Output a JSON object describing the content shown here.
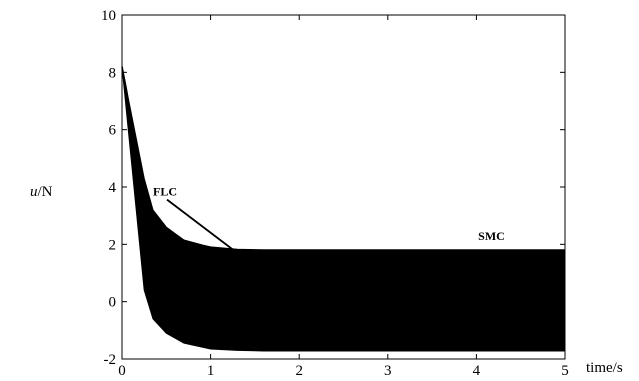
{
  "chart_data": {
    "type": "line",
    "title": "",
    "xlabel": "time/s",
    "ylabel_var": "u",
    "ylabel_unit": "/N",
    "xlim": [
      0,
      5
    ],
    "ylim": [
      -2,
      10
    ],
    "xticks": [
      "0",
      "1",
      "2",
      "3",
      "4",
      "5"
    ],
    "yticks": [
      "-2",
      "0",
      "2",
      "4",
      "6",
      "8",
      "10"
    ],
    "grid": false,
    "legend": "none",
    "series": [
      {
        "name": "SMC",
        "style": "chattering band",
        "x": [
          0,
          0.25,
          0.35,
          0.5,
          0.7,
          1.0,
          1.3,
          1.6,
          2.0,
          3.0,
          4.0,
          5.0
        ],
        "upper": [
          8.2,
          4.3,
          3.2,
          2.6,
          2.15,
          1.9,
          1.82,
          1.8,
          1.8,
          1.8,
          1.8,
          1.8
        ],
        "lower": [
          8.2,
          0.4,
          -0.6,
          -1.1,
          -1.45,
          -1.65,
          -1.7,
          -1.72,
          -1.72,
          -1.72,
          -1.72,
          -1.72
        ]
      },
      {
        "name": "FLC",
        "style": "line",
        "x": [
          0,
          0.05,
          0.1,
          0.15,
          0.2,
          0.25,
          0.3,
          0.4,
          0.5,
          0.7,
          1.0,
          1.3,
          1.6,
          2.0,
          3.0,
          4.0,
          5.0
        ],
        "y": [
          8.2,
          7.4,
          6.4,
          5.4,
          4.5,
          3.9,
          3.4,
          2.8,
          2.45,
          2.1,
          1.9,
          1.82,
          1.8,
          1.8,
          1.8,
          1.8,
          1.8
        ]
      }
    ],
    "annotations": [
      {
        "label": "FLC",
        "text_x": 0.35,
        "text_y": 3.7,
        "arrow_x": 1.25,
        "arrow_y": 1.82
      },
      {
        "label": "SMC",
        "text_x": 4.02,
        "text_y": 2.15
      }
    ],
    "colors": {
      "axis": "#000000",
      "data": "#000000",
      "background": "#ffffff"
    }
  }
}
